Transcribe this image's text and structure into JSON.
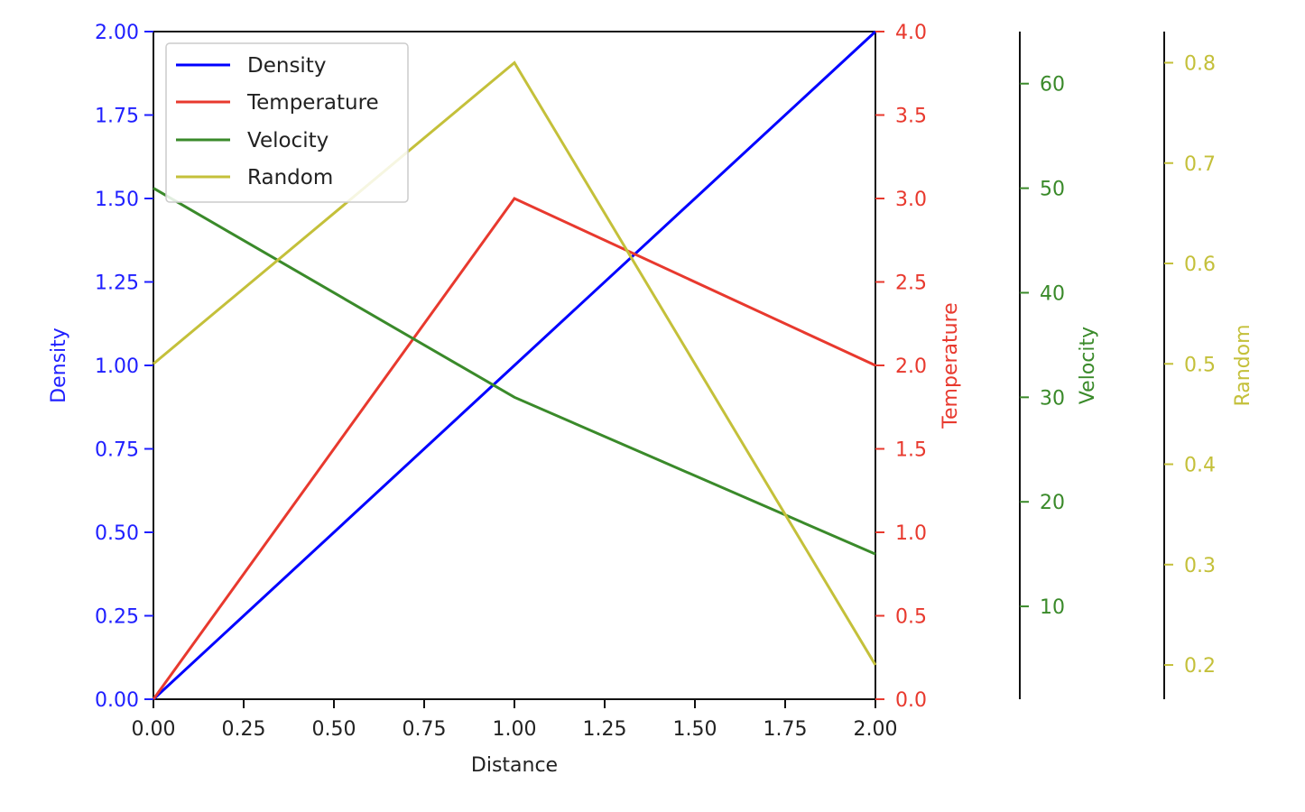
{
  "chart_data": {
    "type": "line",
    "xlabel": "Distance",
    "x": [
      0,
      1,
      2
    ],
    "xlim": [
      0,
      2
    ],
    "xticks": [
      "0.00",
      "0.25",
      "0.50",
      "0.75",
      "1.00",
      "1.25",
      "1.50",
      "1.75",
      "2.00"
    ],
    "legend": {
      "position": "upper-left",
      "entries": [
        "Density",
        "Temperature",
        "Velocity",
        "Random"
      ]
    },
    "axes": [
      {
        "name": "Density",
        "label": "Density",
        "color": "#1f1fff",
        "line_color": "#0000ff",
        "ylim": [
          0,
          2
        ],
        "ticks": [
          0,
          0.25,
          0.5,
          0.75,
          1,
          1.25,
          1.5,
          1.75,
          2
        ],
        "tick_labels": [
          "0.00",
          "0.25",
          "0.50",
          "0.75",
          "1.00",
          "1.25",
          "1.50",
          "1.75",
          "2.00"
        ],
        "values": [
          0,
          1,
          2
        ]
      },
      {
        "name": "Temperature",
        "label": "Temperature",
        "color": "#e8392e",
        "line_color": "#e8392e",
        "ylim": [
          0,
          4
        ],
        "ticks": [
          0,
          0.5,
          1,
          1.5,
          2,
          2.5,
          3,
          3.5,
          4
        ],
        "tick_labels": [
          "0.0",
          "0.5",
          "1.0",
          "1.5",
          "2.0",
          "2.5",
          "3.0",
          "3.5",
          "4.0"
        ],
        "values": [
          0,
          3,
          2
        ]
      },
      {
        "name": "Velocity",
        "label": "Velocity",
        "color": "#3a8a2a",
        "line_color": "#3a8a2a",
        "ylim": [
          1.12,
          64.98
        ],
        "ticks": [
          10,
          20,
          30,
          40,
          50,
          60
        ],
        "tick_labels": [
          "10",
          "20",
          "30",
          "40",
          "50",
          "60"
        ],
        "values": [
          50,
          30,
          15
        ]
      },
      {
        "name": "Random",
        "label": "Random",
        "color": "#c4c03a",
        "line_color": "#c4c03a",
        "ylim": [
          0.1659,
          0.831
        ],
        "ticks": [
          0.2,
          0.3,
          0.4,
          0.5,
          0.6,
          0.7,
          0.8
        ],
        "tick_labels": [
          "0.2",
          "0.3",
          "0.4",
          "0.5",
          "0.6",
          "0.7",
          "0.8"
        ],
        "values": [
          0.5,
          0.8,
          0.2
        ]
      }
    ]
  }
}
